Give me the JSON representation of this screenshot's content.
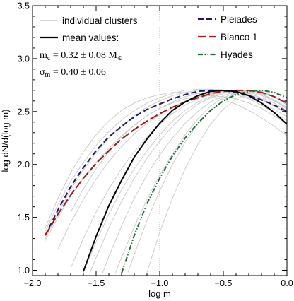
{
  "chart_data": {
    "type": "line",
    "xlabel": "log m",
    "ylabel": "log dN/d(log m)",
    "xlim": [
      -2.0,
      0.0
    ],
    "ylim": [
      0.95,
      3.5
    ],
    "xticks": [
      -2.0,
      -1.5,
      -1.0,
      -0.5,
      0.0
    ],
    "xtick_labels": [
      "−2.0",
      "−1.5",
      "−1.0",
      "−0.5",
      "0.0"
    ],
    "yticks": [
      1.0,
      1.5,
      2.0,
      2.5,
      3.0,
      3.5
    ],
    "ytick_labels": [
      "1.0",
      "1.5",
      "2.0",
      "2.5",
      "3.0",
      "3.5"
    ],
    "reference_line_x": -1.0,
    "legend_left": {
      "items": [
        {
          "label": "individual clusters",
          "color": "#bbbbbb",
          "style": "solid"
        },
        {
          "label": "mean values:",
          "color": "#000000",
          "style": "solid-thick"
        }
      ],
      "params": [
        {
          "symbol": "m",
          "sub": "c",
          "text": " = 0.32 ± 0.08 M",
          "unit_sub": "⊙"
        },
        {
          "symbol": "σ",
          "sub": "m",
          "text": " = 0.40 ± 0.06",
          "unit_sub": ""
        }
      ]
    },
    "legend_right": {
      "items": [
        {
          "label": "Pleiades",
          "color": "#1a1a6e",
          "style": "dashed"
        },
        {
          "label": "Blanco 1",
          "color": "#a01818",
          "style": "longdash"
        },
        {
          "label": "Hyades",
          "color": "#1e6a3a",
          "style": "dashdotdot"
        }
      ]
    },
    "series": [
      {
        "name": "mean values",
        "color": "#000000",
        "style": "solid",
        "width": 2.0,
        "x": [
          -1.6,
          -1.5,
          -1.4,
          -1.3,
          -1.2,
          -1.1,
          -1.0,
          -0.9,
          -0.8,
          -0.7,
          -0.6,
          -0.5,
          -0.4,
          -0.3,
          -0.2,
          -0.1,
          0.0
        ],
        "y": [
          0.99,
          1.32,
          1.61,
          1.85,
          2.07,
          2.24,
          2.39,
          2.51,
          2.59,
          2.65,
          2.69,
          2.7,
          2.69,
          2.65,
          2.58,
          2.49,
          2.38
        ]
      },
      {
        "name": "Pleiades",
        "color": "#1a1a6e",
        "style": "dashed",
        "width": 2.0,
        "x": [
          -1.9,
          -1.8,
          -1.7,
          -1.6,
          -1.5,
          -1.4,
          -1.3,
          -1.2,
          -1.1,
          -1.0,
          -0.9,
          -0.8,
          -0.7,
          -0.6,
          -0.5,
          -0.4,
          -0.3,
          -0.2,
          -0.1,
          0.0
        ],
        "y": [
          1.33,
          1.57,
          1.79,
          1.97,
          2.13,
          2.26,
          2.36,
          2.45,
          2.52,
          2.57,
          2.62,
          2.66,
          2.69,
          2.7,
          2.7,
          2.68,
          2.65,
          2.61,
          2.56,
          2.5
        ]
      },
      {
        "name": "Blanco 1",
        "color": "#a01818",
        "style": "longdash",
        "width": 2.0,
        "x": [
          -1.9,
          -1.8,
          -1.7,
          -1.6,
          -1.5,
          -1.4,
          -1.3,
          -1.2,
          -1.1,
          -1.0,
          -0.9,
          -0.8,
          -0.7,
          -0.6,
          -0.5,
          -0.4,
          -0.3,
          -0.2,
          -0.1,
          0.0
        ],
        "y": [
          1.33,
          1.53,
          1.71,
          1.87,
          2.01,
          2.13,
          2.24,
          2.33,
          2.41,
          2.48,
          2.54,
          2.59,
          2.63,
          2.67,
          2.69,
          2.7,
          2.7,
          2.68,
          2.64,
          2.58
        ]
      },
      {
        "name": "Hyades",
        "color": "#1e6a3a",
        "style": "dashdotdot",
        "width": 2.0,
        "x": [
          -1.3,
          -1.2,
          -1.1,
          -1.0,
          -0.9,
          -0.8,
          -0.7,
          -0.6,
          -0.5,
          -0.4,
          -0.3,
          -0.2,
          -0.1,
          0.0
        ],
        "y": [
          0.97,
          1.33,
          1.63,
          1.87,
          2.08,
          2.25,
          2.39,
          2.51,
          2.6,
          2.66,
          2.69,
          2.7,
          2.68,
          2.63
        ]
      },
      {
        "color": "#c8c8c8",
        "style": "solid",
        "width": 0.9,
        "x": [
          -1.9,
          -1.8,
          -1.7,
          -1.6,
          -1.5,
          -1.4,
          -1.3,
          -1.2,
          -1.1,
          -1.0,
          -0.9,
          -0.8,
          -0.7,
          -0.6,
          -0.5,
          -0.4,
          -0.3,
          -0.2,
          -0.1,
          0.0
        ],
        "y": [
          1.37,
          1.62,
          1.84,
          2.02,
          2.18,
          2.31,
          2.42,
          2.51,
          2.58,
          2.63,
          2.67,
          2.7,
          2.71,
          2.71,
          2.7,
          2.67,
          2.63,
          2.58,
          2.52,
          2.45
        ]
      },
      {
        "color": "#c8c8c8",
        "style": "solid",
        "width": 0.9,
        "x": [
          -1.9,
          -1.8,
          -1.7,
          -1.6,
          -1.5,
          -1.4,
          -1.3,
          -1.2,
          -1.1,
          -1.0,
          -0.9,
          -0.8,
          -0.7,
          -0.6,
          -0.5,
          -0.4,
          -0.3,
          -0.2,
          -0.1,
          0.0
        ],
        "y": [
          1.3,
          1.54,
          1.76,
          1.95,
          2.11,
          2.25,
          2.36,
          2.46,
          2.54,
          2.6,
          2.65,
          2.68,
          2.7,
          2.7,
          2.69,
          2.66,
          2.62,
          2.56,
          2.49,
          2.41
        ]
      },
      {
        "color": "#c8c8c8",
        "style": "solid",
        "width": 0.9,
        "x": [
          -1.9,
          -1.8,
          -1.7,
          -1.6,
          -1.5,
          -1.4,
          -1.3,
          -1.2,
          -1.1,
          -1.0,
          -0.9,
          -0.8,
          -0.7,
          -0.6,
          -0.5,
          -0.4,
          -0.3,
          -0.2,
          -0.1,
          0.0
        ],
        "y": [
          1.4,
          1.68,
          1.92,
          2.12,
          2.28,
          2.41,
          2.51,
          2.58,
          2.63,
          2.66,
          2.68,
          2.68,
          2.67,
          2.65,
          2.61,
          2.57,
          2.51,
          2.44,
          2.36,
          2.27
        ]
      },
      {
        "color": "#c8c8c8",
        "style": "solid",
        "width": 0.9,
        "x": [
          -1.9,
          -1.8,
          -1.7,
          -1.6,
          -1.5,
          -1.4,
          -1.3,
          -1.2,
          -1.1,
          -1.0,
          -0.9,
          -0.8,
          -0.7,
          -0.6,
          -0.5,
          -0.4,
          -0.3,
          -0.2,
          -0.1,
          0.0
        ],
        "y": [
          1.28,
          1.5,
          1.7,
          1.87,
          2.02,
          2.15,
          2.27,
          2.37,
          2.46,
          2.53,
          2.59,
          2.64,
          2.67,
          2.69,
          2.69,
          2.68,
          2.65,
          2.61,
          2.55,
          2.48
        ]
      },
      {
        "color": "#c8c8c8",
        "style": "solid",
        "width": 0.9,
        "x": [
          -1.8,
          -1.7,
          -1.6,
          -1.5,
          -1.4,
          -1.3,
          -1.2,
          -1.1,
          -1.0,
          -0.9,
          -0.8,
          -0.7,
          -0.6,
          -0.5,
          -0.4,
          -0.3,
          -0.2,
          -0.1,
          0.0
        ],
        "y": [
          1.2,
          1.45,
          1.67,
          1.86,
          2.03,
          2.17,
          2.29,
          2.39,
          2.47,
          2.54,
          2.6,
          2.64,
          2.67,
          2.69,
          2.69,
          2.67,
          2.63,
          2.58,
          2.51
        ]
      },
      {
        "color": "#c8c8c8",
        "style": "solid",
        "width": 0.9,
        "x": [
          -1.7,
          -1.6,
          -1.5,
          -1.4,
          -1.3,
          -1.2,
          -1.1,
          -1.0,
          -0.9,
          -0.8,
          -0.7,
          -0.6,
          -0.5,
          -0.4,
          -0.3,
          -0.2,
          -0.1,
          0.0
        ],
        "y": [
          1.02,
          1.3,
          1.55,
          1.77,
          1.96,
          2.12,
          2.26,
          2.38,
          2.48,
          2.56,
          2.62,
          2.66,
          2.68,
          2.68,
          2.66,
          2.62,
          2.56,
          2.48
        ]
      },
      {
        "color": "#c8c8c8",
        "style": "solid",
        "width": 0.9,
        "x": [
          -1.6,
          -1.5,
          -1.4,
          -1.3,
          -1.2,
          -1.1,
          -1.0,
          -0.9,
          -0.8,
          -0.7,
          -0.6,
          -0.5,
          -0.4,
          -0.3,
          -0.2,
          -0.1,
          0.0
        ],
        "y": [
          0.98,
          1.27,
          1.53,
          1.76,
          1.96,
          2.13,
          2.28,
          2.41,
          2.51,
          2.59,
          2.64,
          2.68,
          2.69,
          2.68,
          2.65,
          2.6,
          2.53
        ]
      },
      {
        "color": "#c8c8c8",
        "style": "solid",
        "width": 0.9,
        "x": [
          -1.55,
          -1.5,
          -1.4,
          -1.3,
          -1.2,
          -1.1,
          -1.0,
          -0.9,
          -0.8,
          -0.7,
          -0.6,
          -0.5,
          -0.4,
          -0.3,
          -0.2,
          -0.1,
          0.0
        ],
        "y": [
          0.97,
          1.12,
          1.4,
          1.65,
          1.87,
          2.06,
          2.22,
          2.36,
          2.48,
          2.57,
          2.63,
          2.67,
          2.69,
          2.69,
          2.66,
          2.61,
          2.54
        ]
      },
      {
        "color": "#c8c8c8",
        "style": "solid",
        "width": 0.9,
        "x": [
          -1.45,
          -1.4,
          -1.3,
          -1.2,
          -1.1,
          -1.0,
          -0.9,
          -0.8,
          -0.7,
          -0.6,
          -0.5,
          -0.4,
          -0.3,
          -0.2,
          -0.1,
          0.0
        ],
        "y": [
          0.97,
          1.13,
          1.42,
          1.68,
          1.9,
          2.09,
          2.25,
          2.39,
          2.5,
          2.59,
          2.65,
          2.69,
          2.7,
          2.68,
          2.64,
          2.57
        ]
      },
      {
        "color": "#c8c8c8",
        "style": "solid",
        "width": 0.9,
        "x": [
          -1.35,
          -1.3,
          -1.2,
          -1.1,
          -1.0,
          -0.9,
          -0.8,
          -0.7,
          -0.6,
          -0.5,
          -0.4,
          -0.3,
          -0.2,
          -0.1,
          0.0
        ],
        "y": [
          0.97,
          1.12,
          1.41,
          1.67,
          1.9,
          2.1,
          2.28,
          2.43,
          2.55,
          2.63,
          2.68,
          2.7,
          2.69,
          2.64,
          2.57
        ]
      },
      {
        "color": "#c8c8c8",
        "style": "solid",
        "width": 0.9,
        "x": [
          -1.25,
          -1.2,
          -1.1,
          -1.0,
          -0.9,
          -0.8,
          -0.7,
          -0.6,
          -0.5,
          -0.4,
          -0.3,
          -0.2,
          -0.1,
          0.0
        ],
        "y": [
          0.98,
          1.15,
          1.47,
          1.75,
          2.0,
          2.21,
          2.38,
          2.51,
          2.61,
          2.67,
          2.69,
          2.67,
          2.61,
          2.52
        ]
      },
      {
        "color": "#c8c8c8",
        "style": "solid",
        "width": 0.9,
        "x": [
          -1.1,
          -1.0,
          -0.9,
          -0.8,
          -0.7,
          -0.6,
          -0.5,
          -0.4,
          -0.3,
          -0.2,
          -0.1,
          0.0
        ],
        "y": [
          0.98,
          1.36,
          1.68,
          1.96,
          2.19,
          2.38,
          2.52,
          2.62,
          2.67,
          2.68,
          2.64,
          2.56
        ]
      },
      {
        "color": "#c8c8c8",
        "style": "solid",
        "width": 0.9,
        "x": [
          -1.7,
          -1.6,
          -1.5,
          -1.4,
          -1.3,
          -1.2,
          -1.1,
          -1.0,
          -0.9,
          -0.8,
          -0.7,
          -0.6,
          -0.5,
          -0.4,
          -0.3,
          -0.2,
          -0.1,
          0.0
        ],
        "y": [
          1.55,
          1.77,
          1.96,
          2.12,
          2.26,
          2.37,
          2.46,
          2.53,
          2.58,
          2.62,
          2.64,
          2.65,
          2.64,
          2.62,
          2.58,
          2.53,
          2.46,
          2.38
        ]
      }
    ]
  }
}
